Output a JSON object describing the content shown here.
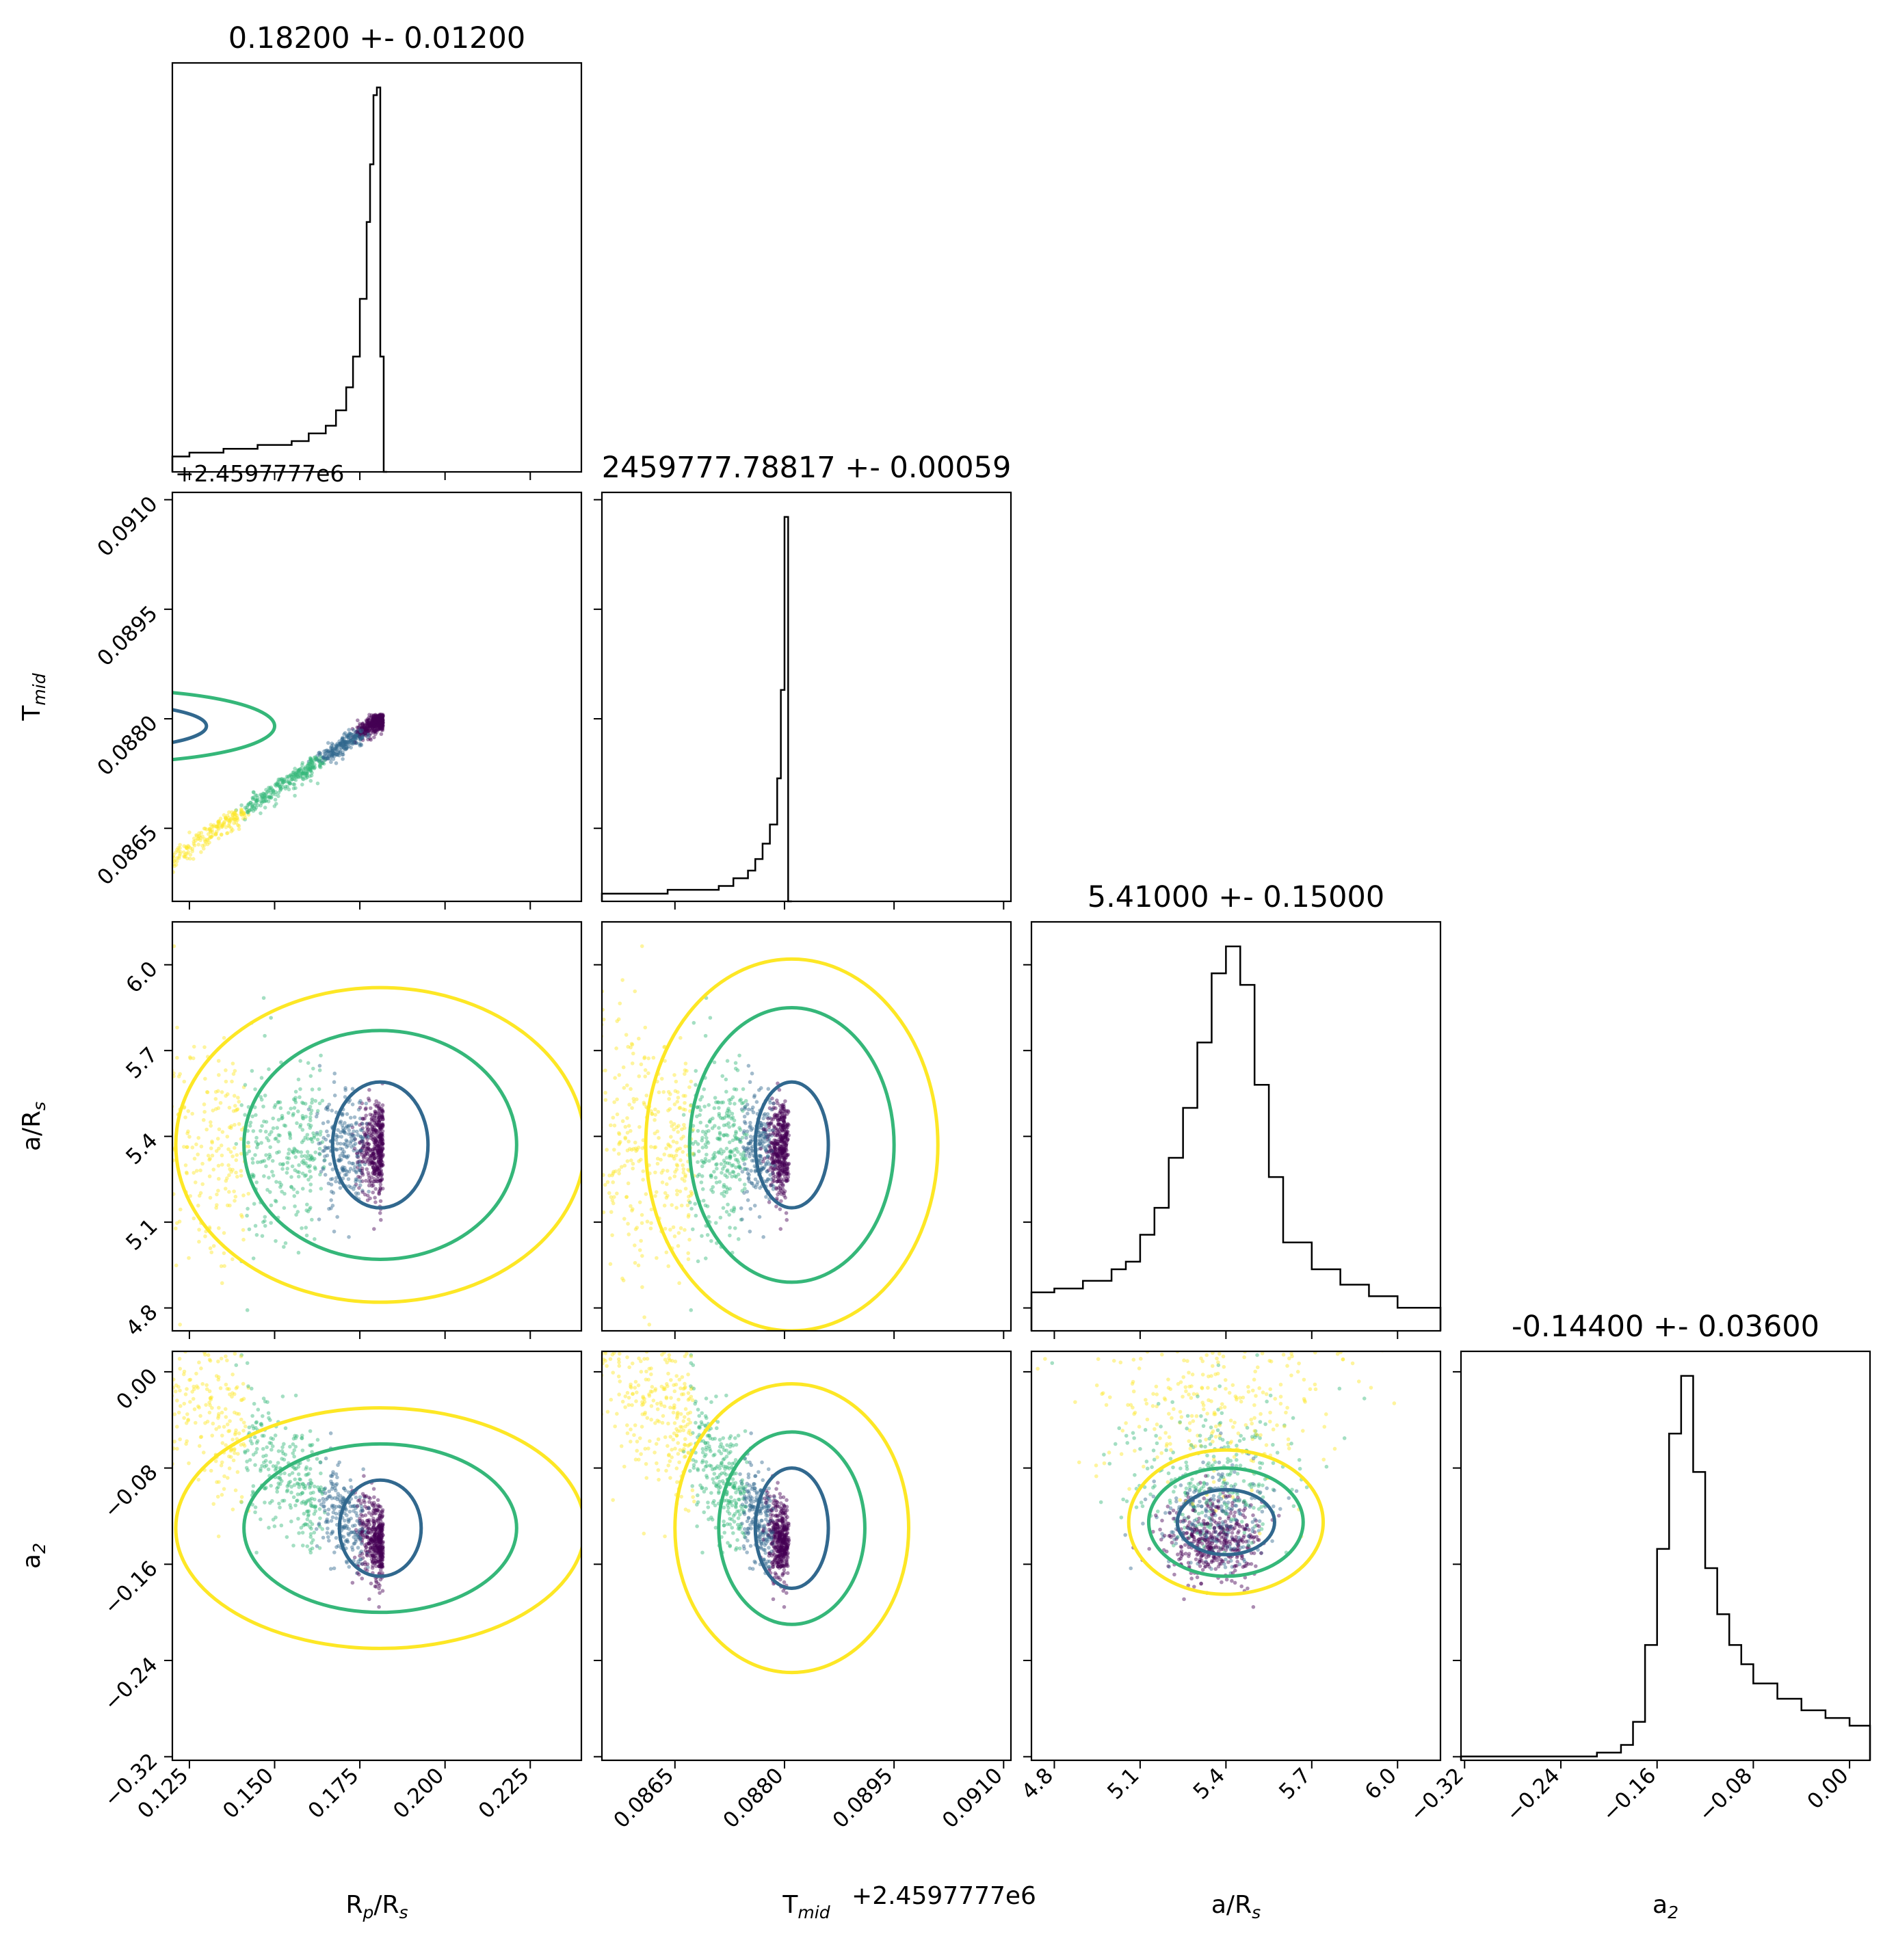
{
  "chart_data": {
    "type": "corner",
    "parameters": [
      {
        "key": "rprs",
        "label_main": "R",
        "label_sub1": "p",
        "label_mid": "/R",
        "label_sub2": "s",
        "title": "0.18200 +- 0.01200",
        "range": [
          0.12,
          0.24
        ],
        "ticks": [
          0.125,
          0.15,
          0.175,
          0.2,
          0.225
        ],
        "tick_labels": [
          "0.125",
          "0.150",
          "0.175",
          "0.200",
          "0.225"
        ]
      },
      {
        "key": "tmid",
        "label_main": "T",
        "label_sub1": "mid",
        "label_mid": "",
        "label_sub2": "",
        "title": "2459777.78817 +- 0.00059",
        "range": [
          0.0855,
          0.0911
        ],
        "ticks": [
          0.0865,
          0.088,
          0.0895,
          0.091
        ],
        "tick_labels": [
          "0.0865",
          "0.0880",
          "0.0895",
          "0.0910"
        ],
        "offset_label": "+2.4597777e6"
      },
      {
        "key": "ars",
        "label_main": "a/R",
        "label_sub1": "",
        "label_mid": "",
        "label_sub2": "s",
        "title": "5.41000 +- 0.15000",
        "range": [
          4.72,
          6.15
        ],
        "ticks": [
          4.8,
          5.1,
          5.4,
          5.7,
          6.0
        ],
        "tick_labels": [
          "4.8",
          "5.1",
          "5.4",
          "5.7",
          "6.0"
        ]
      },
      {
        "key": "a2",
        "label_main": "a",
        "label_sub1": "",
        "label_mid": "",
        "label_sub2": "2",
        "title": "-0.14400 +- 0.03600",
        "range": [
          -0.323,
          0.017
        ],
        "ticks": [
          -0.32,
          -0.24,
          -0.16,
          -0.08,
          0.0
        ],
        "tick_labels": [
          "−0.32",
          "−0.24",
          "−0.16",
          "−0.08",
          "0.00"
        ]
      }
    ],
    "histograms": [
      {
        "param": "rprs",
        "peak": 0.181,
        "bins": [
          0.12,
          0.125,
          0.13,
          0.135,
          0.14,
          0.145,
          0.15,
          0.155,
          0.16,
          0.165,
          0.168,
          0.171,
          0.173,
          0.175,
          0.177,
          0.178,
          0.179,
          0.18,
          0.181,
          0.182,
          0.183
        ],
        "heights": [
          0.04,
          0.05,
          0.05,
          0.06,
          0.06,
          0.07,
          0.07,
          0.08,
          0.1,
          0.12,
          0.16,
          0.22,
          0.3,
          0.45,
          0.65,
          0.8,
          0.98,
          1.0,
          0.3,
          0.0
        ]
      },
      {
        "param": "tmid",
        "peak": 0.08803,
        "bins": [
          0.0855,
          0.086,
          0.0864,
          0.0868,
          0.0871,
          0.0873,
          0.0875,
          0.0876,
          0.0877,
          0.0878,
          0.0879,
          0.08795,
          0.088,
          0.08805,
          0.0881
        ],
        "heights": [
          0.02,
          0.02,
          0.03,
          0.03,
          0.04,
          0.06,
          0.08,
          0.11,
          0.15,
          0.2,
          0.32,
          0.55,
          1.0,
          0.0
        ]
      },
      {
        "param": "ars",
        "peak": 5.4,
        "bins": [
          4.72,
          4.8,
          4.9,
          5.0,
          5.05,
          5.1,
          5.15,
          5.2,
          5.25,
          5.3,
          5.35,
          5.4,
          5.45,
          5.5,
          5.55,
          5.6,
          5.7,
          5.8,
          5.9,
          6.0,
          6.15
        ],
        "heights": [
          0.1,
          0.11,
          0.13,
          0.16,
          0.18,
          0.25,
          0.32,
          0.45,
          0.58,
          0.75,
          0.93,
          1.0,
          0.9,
          0.64,
          0.4,
          0.23,
          0.16,
          0.12,
          0.09,
          0.06
        ]
      },
      {
        "param": "a2",
        "peak": -0.135,
        "bins": [
          -0.323,
          -0.29,
          -0.25,
          -0.21,
          -0.19,
          -0.18,
          -0.17,
          -0.16,
          -0.15,
          -0.14,
          -0.13,
          -0.12,
          -0.11,
          -0.1,
          -0.09,
          -0.08,
          -0.06,
          -0.04,
          -0.02,
          0.0,
          0.017
        ],
        "heights": [
          0.01,
          0.01,
          0.01,
          0.02,
          0.04,
          0.1,
          0.3,
          0.55,
          0.85,
          1.0,
          0.75,
          0.5,
          0.38,
          0.3,
          0.25,
          0.2,
          0.16,
          0.13,
          0.11,
          0.09
        ]
      }
    ],
    "scatter_colors": [
      "#fde725",
      "#35b779",
      "#31688e",
      "#440154"
    ],
    "contour_colors": [
      "#fde725",
      "#35b779",
      "#31688e"
    ],
    "histogram_color": "#000000"
  }
}
